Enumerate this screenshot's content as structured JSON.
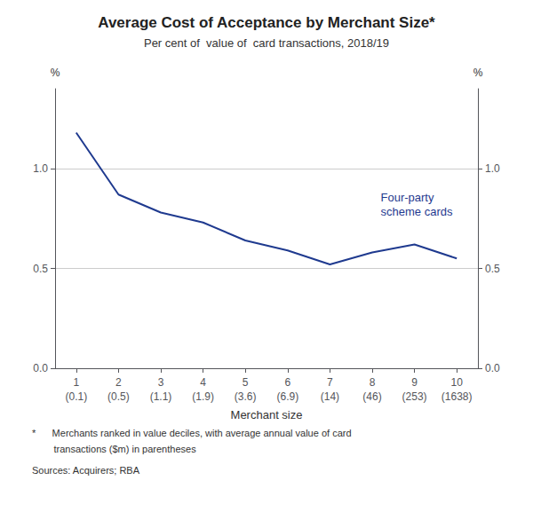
{
  "chart_data": {
    "type": "line",
    "title": "Average Cost of Acceptance by Merchant Size*",
    "subtitle": "Per cent of  value of  card transactions, 2018/19",
    "xlabel": "Merchant size",
    "ylabel": "%",
    "y2label": "%",
    "x": [
      1,
      2,
      3,
      4,
      5,
      6,
      7,
      8,
      9,
      10
    ],
    "values": [
      1.18,
      0.87,
      0.78,
      0.73,
      0.64,
      0.59,
      0.52,
      0.58,
      0.62,
      0.55
    ],
    "color": "#1f3a8f",
    "xlim": [
      0.5,
      10.5
    ],
    "xticks": [
      1,
      2,
      3,
      4,
      5,
      6,
      7,
      8,
      9,
      10
    ],
    "xtick_sublabels": [
      "(0.1)",
      "(0.5)",
      "(1.1)",
      "(1.9)",
      "(3.6)",
      "(6.9)",
      "(14)",
      "(46)",
      "(253)",
      "(1638)"
    ],
    "ylim": [
      0.0,
      1.4
    ],
    "yticks": [
      {
        "value": 0.0,
        "label": "0.0"
      },
      0.5,
      {
        "value": 1.0,
        "label": "1.0"
      }
    ],
    "y2lim": [
      0.0,
      1.4
    ],
    "y2ticks": [
      {
        "value": 0.0,
        "label": "0.0"
      },
      0.5,
      {
        "value": 1.0,
        "label": "1.0"
      }
    ],
    "grid": true,
    "annotations": [
      {
        "text": "Four-party\nscheme cards",
        "x": 8.2,
        "y": 0.82,
        "color": "#1f3a8f"
      }
    ],
    "footnotes": [
      "*      Merchants ranked in value deciles, with average annual value of card",
      "        transactions ($m) in parentheses",
      "Sources: Acquirers; RBA"
    ]
  }
}
